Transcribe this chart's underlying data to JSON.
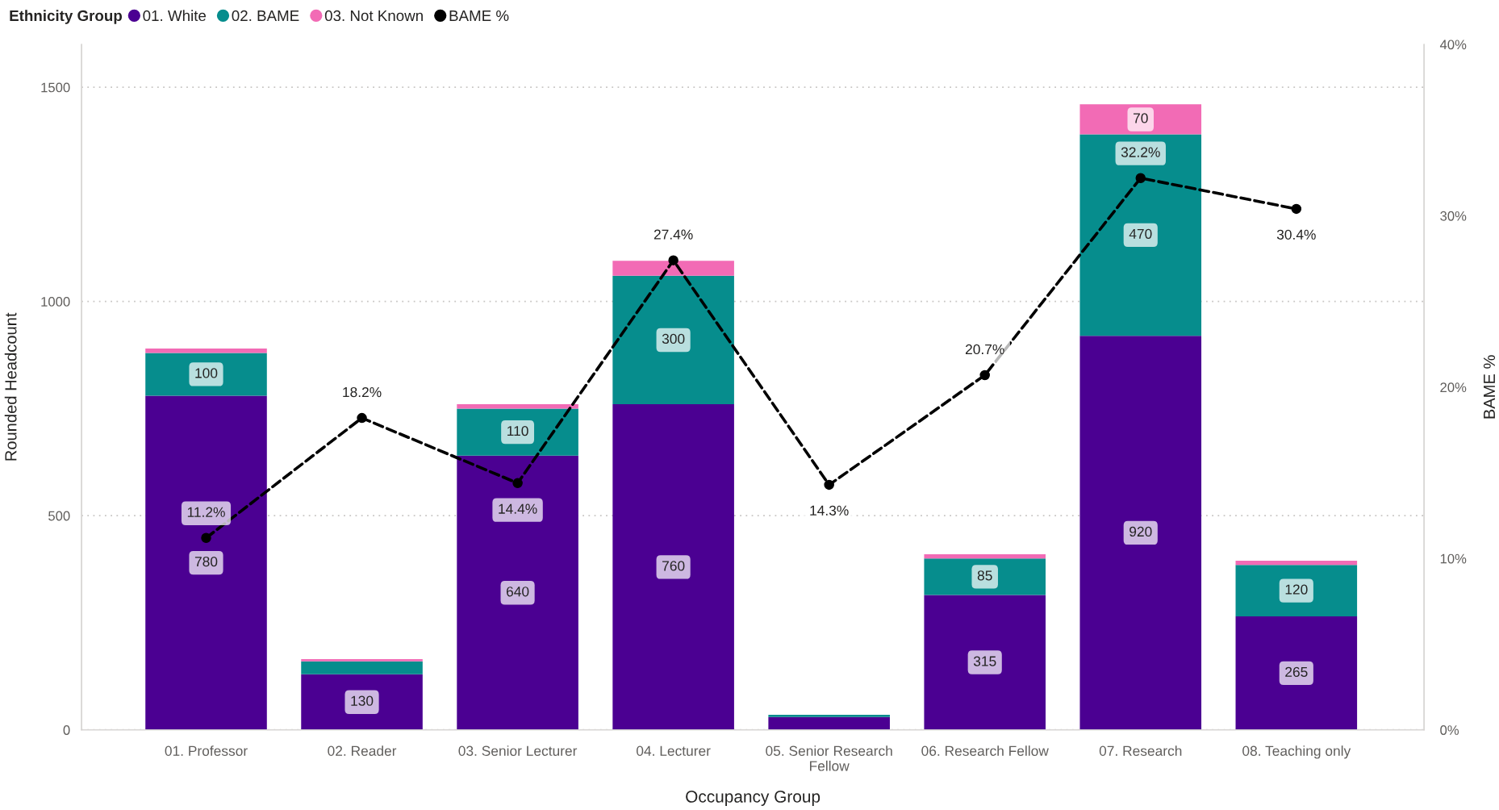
{
  "chart_data": {
    "type": "bar",
    "stacked": true,
    "legend_title": "Ethnicity Group",
    "xlabel": "Occupancy Group",
    "ylabel": "Rounded Headcount",
    "y2label": "BAME %",
    "categories": [
      "01. Professor",
      "02. Reader",
      "03. Senior Lecturer",
      "04. Lecturer",
      "05. Senior Research Fellow",
      "06. Research Fellow",
      "07. Research",
      "08. Teaching only"
    ],
    "series": [
      {
        "name": "01. White",
        "color": "#4b0092",
        "values": [
          780,
          130,
          640,
          760,
          30,
          315,
          920,
          265
        ],
        "value_labels": [
          "780",
          "130",
          "640",
          "760",
          null,
          "315",
          "920",
          "265"
        ]
      },
      {
        "name": "02. BAME",
        "color": "#068d8d",
        "values": [
          100,
          30,
          110,
          300,
          5,
          85,
          470,
          120
        ],
        "value_labels": [
          "100",
          null,
          "110",
          "300",
          null,
          "85",
          "470",
          "120"
        ]
      },
      {
        "name": "03. Not Known",
        "color": "#f26bb5",
        "values": [
          10,
          5,
          10,
          35,
          0,
          10,
          70,
          10
        ],
        "value_labels": [
          null,
          null,
          null,
          null,
          null,
          null,
          "70",
          null
        ]
      },
      {
        "name": "BAME %",
        "type": "line",
        "axis": "y2",
        "color": "#000000",
        "marker": "circle",
        "line_style": "dashed",
        "values": [
          11.2,
          18.2,
          14.4,
          27.4,
          14.3,
          20.7,
          32.2,
          30.4
        ],
        "value_labels": [
          "11.2%",
          "18.2%",
          "14.4%",
          "27.4%",
          "14.3%",
          "20.7%",
          "32.2%",
          "30.4%"
        ]
      }
    ],
    "ylim": [
      0,
      1600
    ],
    "yticks": [
      0,
      500,
      1000,
      1500
    ],
    "y2lim": [
      0,
      40
    ],
    "y2ticks": [
      {
        "value": 0,
        "label": "0%"
      },
      {
        "value": 10,
        "label": "10%"
      },
      {
        "value": 20,
        "label": "20%"
      },
      {
        "value": 30,
        "label": "30%"
      },
      {
        "value": 40,
        "label": "40%"
      }
    ],
    "grid": "y",
    "legend": "top left"
  }
}
